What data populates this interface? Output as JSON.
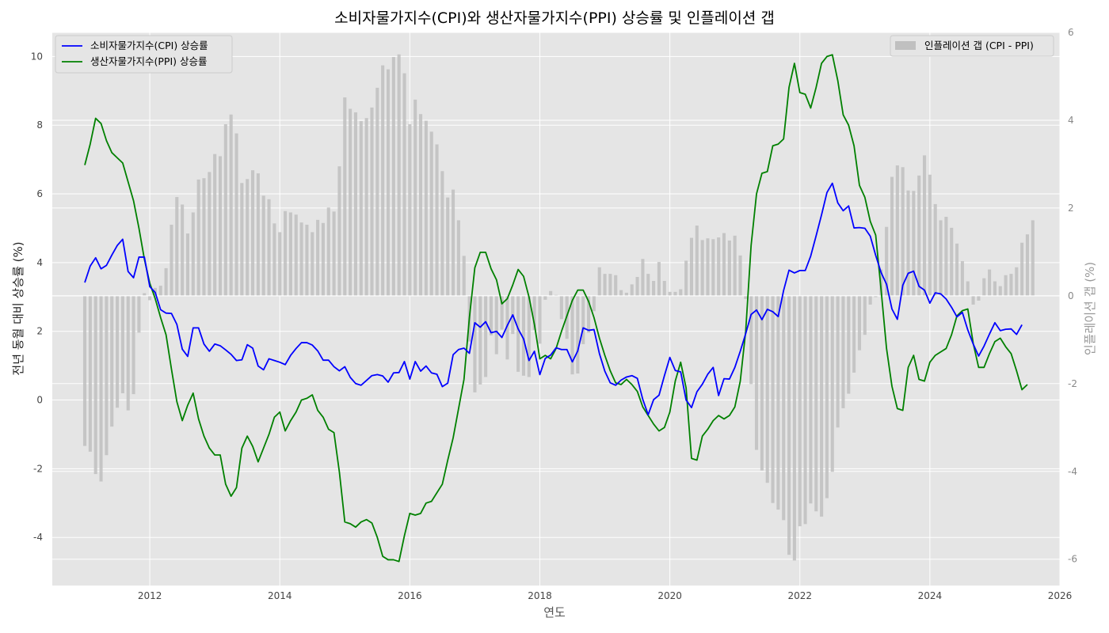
{
  "chart_data": {
    "type": "line",
    "title": "소비자물가지수(CPI)와 생산자물가지수(PPI) 상승률 및 인플레이션 갭",
    "xlabel": "연도",
    "ylabel": "전년 동월 대비 상승률 (%)",
    "y2label": "인플레이션 갭 (%)",
    "x_start": "2011-01",
    "x_end": "2025-06",
    "frequency": "monthly",
    "xlim": [
      "2010-07",
      "2026-01"
    ],
    "ylim": [
      -5.4,
      10.7
    ],
    "y2lim": [
      -6.6,
      6
    ],
    "x_ticks": [
      "2012",
      "2014",
      "2016",
      "2018",
      "2020",
      "2022",
      "2024",
      "2026"
    ],
    "y_ticks": [
      "-4",
      "-2",
      "0",
      "2",
      "4",
      "6",
      "8",
      "10"
    ],
    "y2_ticks": [
      "-6",
      "-4",
      "-2",
      "0",
      "2",
      "4",
      "6"
    ],
    "grid": true,
    "legend_left_position": "upper-left",
    "legend_right_position": "upper-right",
    "series": [
      {
        "name": "소비자물가지수(CPI) 상승률",
        "axis": "left",
        "kind": "line",
        "color": "#0000ff",
        "values": [
          3.42,
          3.9,
          4.14,
          3.82,
          3.92,
          4.22,
          4.5,
          4.68,
          3.74,
          3.56,
          4.16,
          4.16,
          3.3,
          3.13,
          2.63,
          2.53,
          2.52,
          2.2,
          1.48,
          1.27,
          2.1,
          2.1,
          1.63,
          1.42,
          1.63,
          1.58,
          1.46,
          1.33,
          1.15,
          1.17,
          1.61,
          1.51,
          0.99,
          0.88,
          1.2,
          1.15,
          1.1,
          1.03,
          1.3,
          1.5,
          1.67,
          1.67,
          1.6,
          1.43,
          1.16,
          1.16,
          0.97,
          0.85,
          0.97,
          0.66,
          0.48,
          0.43,
          0.57,
          0.71,
          0.74,
          0.7,
          0.52,
          0.79,
          0.8,
          1.12,
          0.61,
          1.12,
          0.84,
          0.99,
          0.79,
          0.75,
          0.39,
          0.49,
          1.32,
          1.47,
          1.51,
          1.36,
          2.25,
          2.12,
          2.28,
          1.96,
          2.0,
          1.82,
          2.17,
          2.48,
          2.07,
          1.78,
          1.15,
          1.42,
          0.74,
          1.21,
          1.31,
          1.52,
          1.47,
          1.47,
          1.11,
          1.43,
          2.1,
          2.03,
          2.05,
          1.35,
          0.84,
          0.5,
          0.43,
          0.58,
          0.67,
          0.71,
          0.63,
          0.02,
          -0.43,
          0.01,
          0.14,
          0.71,
          1.24,
          0.86,
          0.82,
          0.0,
          -0.22,
          0.24,
          0.46,
          0.75,
          0.95,
          0.13,
          0.62,
          0.61,
          0.95,
          1.42,
          1.93,
          2.49,
          2.62,
          2.34,
          2.64,
          2.57,
          2.43,
          3.19,
          3.78,
          3.7,
          3.77,
          3.77,
          4.19,
          4.78,
          5.39,
          6.04,
          6.31,
          5.74,
          5.51,
          5.65,
          5.01,
          5.02,
          5.0,
          4.77,
          4.21,
          3.71,
          3.37,
          2.65,
          2.35,
          3.34,
          3.69,
          3.75,
          3.31,
          3.2,
          2.82,
          3.12,
          3.09,
          2.94,
          2.7,
          2.42,
          2.55,
          2.04,
          1.63,
          1.28,
          1.57,
          1.92,
          2.25,
          2.02,
          2.06,
          2.07,
          1.91,
          2.19
        ]
      },
      {
        "name": "생산자물가지수(PPI) 상승률",
        "axis": "left",
        "kind": "line",
        "color": "#008000",
        "values": [
          6.84,
          7.45,
          8.2,
          8.05,
          7.55,
          7.2,
          7.05,
          6.9,
          6.35,
          5.8,
          5.0,
          4.1,
          3.4,
          2.95,
          2.4,
          1.9,
          0.9,
          -0.05,
          -0.6,
          -0.15,
          0.2,
          -0.55,
          -1.05,
          -1.4,
          -1.6,
          -1.6,
          -2.45,
          -2.8,
          -2.55,
          -1.4,
          -1.05,
          -1.35,
          -1.8,
          -1.4,
          -1.0,
          -0.5,
          -0.35,
          -0.9,
          -0.6,
          -0.35,
          0.0,
          0.05,
          0.15,
          -0.3,
          -0.5,
          -0.85,
          -0.95,
          -2.1,
          -3.55,
          -3.6,
          -3.7,
          -3.55,
          -3.48,
          -3.58,
          -4.0,
          -4.55,
          -4.65,
          -4.65,
          -4.7,
          -3.95,
          -3.3,
          -3.35,
          -3.3,
          -3.0,
          -2.95,
          -2.7,
          -2.45,
          -1.75,
          -1.1,
          -0.25,
          0.6,
          2.4,
          3.85,
          4.3,
          4.3,
          3.82,
          3.5,
          2.8,
          2.95,
          3.35,
          3.8,
          3.6,
          3.0,
          2.2,
          1.2,
          1.3,
          1.2,
          1.5,
          2.0,
          2.45,
          2.9,
          3.2,
          3.2,
          2.87,
          2.4,
          1.8,
          1.3,
          0.85,
          0.5,
          0.45,
          0.6,
          0.45,
          0.25,
          -0.2,
          -0.45,
          -0.7,
          -0.9,
          -0.8,
          -0.35,
          0.55,
          1.1,
          0.35,
          -1.7,
          -1.75,
          -1.05,
          -0.85,
          -0.6,
          -0.45,
          -0.55,
          -0.45,
          -0.2,
          0.55,
          2.0,
          4.5,
          6.0,
          6.6,
          6.65,
          7.4,
          7.45,
          7.6,
          9.1,
          9.8,
          8.95,
          8.9,
          8.5,
          9.1,
          9.8,
          10.0,
          10.05,
          9.3,
          8.3,
          8.0,
          7.4,
          6.25,
          5.9,
          5.2,
          4.8,
          3.2,
          1.5,
          0.4,
          -0.25,
          -0.3,
          0.95,
          1.3,
          0.6,
          0.55,
          1.1,
          1.3,
          1.4,
          1.5,
          1.9,
          2.45,
          2.6,
          2.65,
          1.65,
          0.95,
          0.95,
          1.35,
          1.7,
          1.8,
          1.55,
          1.35,
          0.85,
          0.3,
          0.45
        ]
      },
      {
        "name": "인플레이션 갭 (CPI - PPI)",
        "axis": "right",
        "kind": "bar",
        "color": "#c0c0c0",
        "values": [
          -3.42,
          -3.55,
          -4.06,
          -4.23,
          -3.63,
          -2.98,
          -2.55,
          -2.22,
          -2.61,
          -2.24,
          -0.84,
          0.06,
          -0.1,
          0.18,
          0.23,
          0.63,
          1.62,
          2.25,
          2.08,
          1.42,
          1.9,
          2.65,
          2.68,
          2.82,
          3.23,
          3.18,
          3.91,
          4.13,
          3.7,
          2.57,
          2.66,
          2.86,
          2.79,
          2.28,
          2.2,
          1.65,
          1.45,
          1.93,
          1.9,
          1.85,
          1.67,
          1.62,
          1.45,
          1.73,
          1.66,
          2.01,
          1.92,
          2.95,
          4.52,
          4.26,
          4.18,
          3.98,
          4.05,
          4.29,
          4.74,
          5.25,
          5.16,
          5.44,
          5.5,
          5.07,
          3.91,
          4.47,
          4.14,
          3.99,
          3.74,
          3.45,
          2.84,
          2.24,
          2.42,
          1.72,
          0.91,
          -1.04,
          -2.2,
          -2.02,
          -1.85,
          -0.9,
          -1.33,
          -0.77,
          -1.45,
          -0.87,
          -1.73,
          -1.82,
          -1.85,
          -0.78,
          -1.09,
          -0.09,
          0.11,
          0.02,
          -0.53,
          -0.98,
          -1.79,
          -1.77,
          -1.1,
          -0.84,
          -0.35,
          0.65,
          0.5,
          0.5,
          0.47,
          0.13,
          0.07,
          0.26,
          0.43,
          0.84,
          0.5,
          0.34,
          0.77,
          0.34,
          0.09,
          0.09,
          0.15,
          0.8,
          1.32,
          1.6,
          1.27,
          1.31,
          1.29,
          1.33,
          1.43,
          1.26,
          1.37,
          0.92,
          -0.07,
          -2.01,
          -3.51,
          -3.98,
          -4.26,
          -4.72,
          -4.87,
          -5.11,
          -5.9,
          -6.03,
          -5.25,
          -5.2,
          -4.73,
          -4.91,
          -5.03,
          -4.61,
          -4.01,
          -3.0,
          -2.56,
          -2.23,
          -1.75,
          -1.24,
          -0.89,
          -0.2,
          -0.03,
          0.6,
          1.57,
          2.71,
          2.97,
          2.93,
          2.4,
          2.39,
          2.74,
          3.2,
          2.76,
          2.09,
          1.72,
          1.8,
          1.55,
          1.19,
          0.79,
          0.33,
          -0.2,
          -0.11,
          0.4,
          0.6,
          0.33,
          0.22,
          0.47,
          0.5,
          0.65,
          1.21,
          1.4,
          1.72
        ]
      }
    ]
  }
}
